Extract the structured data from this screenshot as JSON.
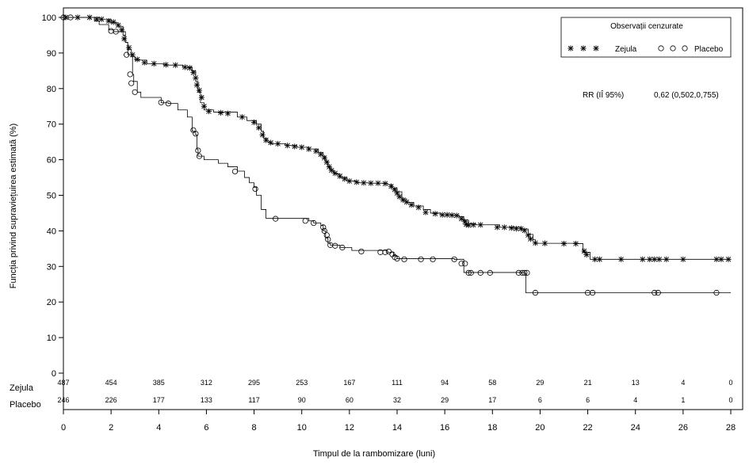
{
  "chart_data": {
    "type": "line",
    "subtype": "kaplan-meier",
    "xlabel": "Timpul de la rambomizare (luni)",
    "ylabel": "Funcția privind supraviețuirea estimată (%)",
    "xlim": [
      0,
      28
    ],
    "ylim": [
      0,
      100
    ],
    "xticks": [
      0,
      2,
      4,
      6,
      8,
      10,
      12,
      14,
      16,
      18,
      20,
      22,
      24,
      26,
      28
    ],
    "yticks": [
      0,
      10,
      20,
      30,
      40,
      50,
      60,
      70,
      80,
      90,
      100
    ],
    "grid": false,
    "legend": {
      "title": "Observații cenzurate",
      "position": "top-right",
      "entries": [
        {
          "series": "Zejula",
          "label": "Zejula",
          "marker": "asterisk"
        },
        {
          "series": "Placebo",
          "label": "Placebo",
          "marker": "circle"
        }
      ]
    },
    "annotation": {
      "label": "RR (IÎ 95%)",
      "value": "0,62 (0,502,0,755)"
    },
    "series": [
      {
        "name": "Zejula",
        "marker": "asterisk",
        "color": "#000000",
        "steps": [
          [
            0,
            100
          ],
          [
            1.5,
            99.5
          ],
          [
            2.0,
            98.5
          ],
          [
            2.3,
            97.5
          ],
          [
            2.5,
            96
          ],
          [
            2.6,
            93
          ],
          [
            2.7,
            91
          ],
          [
            2.85,
            89
          ],
          [
            3.0,
            88
          ],
          [
            3.5,
            87
          ],
          [
            4.2,
            86.6
          ],
          [
            5.0,
            86
          ],
          [
            5.4,
            85
          ],
          [
            5.55,
            82
          ],
          [
            5.65,
            79
          ],
          [
            5.75,
            76
          ],
          [
            5.9,
            74
          ],
          [
            6.3,
            73.4
          ],
          [
            7.3,
            72
          ],
          [
            7.7,
            71
          ],
          [
            8.1,
            70
          ],
          [
            8.3,
            68
          ],
          [
            8.4,
            66
          ],
          [
            8.55,
            65
          ],
          [
            8.7,
            64.5
          ],
          [
            9.3,
            64
          ],
          [
            9.8,
            63.5
          ],
          [
            10.3,
            63
          ],
          [
            10.7,
            62
          ],
          [
            10.9,
            61
          ],
          [
            11.0,
            59.5
          ],
          [
            11.1,
            58
          ],
          [
            11.2,
            57
          ],
          [
            11.35,
            56
          ],
          [
            11.6,
            55
          ],
          [
            11.9,
            54
          ],
          [
            12.3,
            53.5
          ],
          [
            12.8,
            53.4
          ],
          [
            13.6,
            53
          ],
          [
            13.8,
            52
          ],
          [
            14.0,
            51
          ],
          [
            14.2,
            49
          ],
          [
            14.4,
            48
          ],
          [
            14.7,
            47
          ],
          [
            15.1,
            46
          ],
          [
            15.4,
            45
          ],
          [
            15.8,
            44.5
          ],
          [
            16.3,
            44.4
          ],
          [
            16.6,
            44
          ],
          [
            16.8,
            43
          ],
          [
            17.0,
            42
          ],
          [
            17.3,
            41.7
          ],
          [
            18.3,
            41
          ],
          [
            19.2,
            40.5
          ],
          [
            19.5,
            39
          ],
          [
            19.7,
            37.5
          ],
          [
            19.8,
            36.5
          ],
          [
            21.6,
            36.4
          ],
          [
            21.8,
            34
          ],
          [
            22.1,
            32
          ],
          [
            28.0,
            32
          ]
        ],
        "censored": [
          [
            0.1,
            100
          ],
          [
            0.6,
            100
          ],
          [
            1.1,
            100
          ],
          [
            1.4,
            99.5
          ],
          [
            1.6,
            99.5
          ],
          [
            1.9,
            99
          ],
          [
            2.1,
            98.7
          ],
          [
            2.3,
            97.8
          ],
          [
            2.45,
            96.5
          ],
          [
            2.55,
            94
          ],
          [
            2.75,
            91.5
          ],
          [
            2.9,
            89.5
          ],
          [
            3.1,
            88.2
          ],
          [
            3.4,
            87.3
          ],
          [
            3.8,
            87
          ],
          [
            4.3,
            86.7
          ],
          [
            4.7,
            86.6
          ],
          [
            5.1,
            86
          ],
          [
            5.3,
            85.8
          ],
          [
            5.45,
            84.5
          ],
          [
            5.55,
            83
          ],
          [
            5.6,
            81
          ],
          [
            5.7,
            79.5
          ],
          [
            5.8,
            77.5
          ],
          [
            5.9,
            75
          ],
          [
            6.1,
            73.6
          ],
          [
            6.6,
            73.2
          ],
          [
            6.9,
            73
          ],
          [
            7.5,
            72
          ],
          [
            8.0,
            70.5
          ],
          [
            8.2,
            69
          ],
          [
            8.35,
            67
          ],
          [
            8.5,
            65.5
          ],
          [
            8.7,
            64.8
          ],
          [
            9.0,
            64.5
          ],
          [
            9.4,
            64
          ],
          [
            9.7,
            63.7
          ],
          [
            10.0,
            63.5
          ],
          [
            10.3,
            63
          ],
          [
            10.6,
            62.4
          ],
          [
            10.8,
            61.5
          ],
          [
            10.95,
            60.5
          ],
          [
            11.05,
            59.3
          ],
          [
            11.15,
            58
          ],
          [
            11.25,
            57
          ],
          [
            11.4,
            56.2
          ],
          [
            11.6,
            55.4
          ],
          [
            11.8,
            54.6
          ],
          [
            12.0,
            54
          ],
          [
            12.3,
            53.7
          ],
          [
            12.6,
            53.5
          ],
          [
            12.9,
            53.4
          ],
          [
            13.2,
            53.4
          ],
          [
            13.5,
            53.3
          ],
          [
            13.75,
            52.5
          ],
          [
            13.9,
            51.6
          ],
          [
            14.0,
            50.6
          ],
          [
            14.1,
            49.6
          ],
          [
            14.25,
            48.7
          ],
          [
            14.4,
            48.1
          ],
          [
            14.6,
            47.3
          ],
          [
            14.9,
            46.6
          ],
          [
            15.2,
            45.2
          ],
          [
            15.6,
            44.8
          ],
          [
            15.9,
            44.5
          ],
          [
            16.1,
            44.5
          ],
          [
            16.3,
            44.4
          ],
          [
            16.5,
            44.3
          ],
          [
            16.7,
            43.4
          ],
          [
            16.85,
            42.6
          ],
          [
            16.9,
            41.8
          ],
          [
            17.0,
            41.6
          ],
          [
            17.2,
            41.7
          ],
          [
            17.5,
            41.7
          ],
          [
            18.2,
            41
          ],
          [
            18.5,
            41
          ],
          [
            18.8,
            40.8
          ],
          [
            19.0,
            40.6
          ],
          [
            19.2,
            40.6
          ],
          [
            19.35,
            40.1
          ],
          [
            19.5,
            38.8
          ],
          [
            19.6,
            37.7
          ],
          [
            19.8,
            36.6
          ],
          [
            20.2,
            36.5
          ],
          [
            21.0,
            36.4
          ],
          [
            21.5,
            36.4
          ],
          [
            21.85,
            34.3
          ],
          [
            21.95,
            33.3
          ],
          [
            22.3,
            32
          ],
          [
            22.5,
            32
          ],
          [
            23.4,
            32
          ],
          [
            24.3,
            32
          ],
          [
            24.6,
            32
          ],
          [
            24.8,
            32
          ],
          [
            25.0,
            32
          ],
          [
            25.3,
            32
          ],
          [
            26.0,
            32
          ],
          [
            27.4,
            32
          ],
          [
            27.6,
            32
          ],
          [
            27.9,
            32
          ]
        ]
      },
      {
        "name": "Placebo",
        "marker": "circle",
        "color": "#000000",
        "steps": [
          [
            0,
            100
          ],
          [
            1.3,
            99
          ],
          [
            1.5,
            98
          ],
          [
            1.9,
            96.5
          ],
          [
            2.1,
            96
          ],
          [
            2.5,
            95
          ],
          [
            2.6,
            93
          ],
          [
            2.7,
            89.5
          ],
          [
            2.9,
            84
          ],
          [
            2.95,
            82
          ],
          [
            3.1,
            79
          ],
          [
            3.25,
            77.5
          ],
          [
            4.1,
            76
          ],
          [
            4.4,
            75.8
          ],
          [
            4.8,
            74
          ],
          [
            5.2,
            72
          ],
          [
            5.4,
            68
          ],
          [
            5.55,
            67
          ],
          [
            5.6,
            63
          ],
          [
            5.65,
            61
          ],
          [
            5.9,
            60
          ],
          [
            6.5,
            59
          ],
          [
            6.9,
            58
          ],
          [
            7.3,
            56.8
          ],
          [
            7.6,
            55
          ],
          [
            7.8,
            53.5
          ],
          [
            8.0,
            52.2
          ],
          [
            8.1,
            50
          ],
          [
            8.3,
            46
          ],
          [
            8.5,
            43.5
          ],
          [
            10.3,
            42.8
          ],
          [
            10.5,
            42.2
          ],
          [
            10.8,
            41.5
          ],
          [
            10.9,
            40
          ],
          [
            11.0,
            38
          ],
          [
            11.1,
            36.5
          ],
          [
            11.2,
            36
          ],
          [
            11.6,
            35.3
          ],
          [
            12.1,
            34.5
          ],
          [
            13.6,
            34
          ],
          [
            13.85,
            33
          ],
          [
            14.0,
            32.2
          ],
          [
            16.4,
            32
          ],
          [
            16.8,
            28.3
          ],
          [
            19.3,
            28.2
          ],
          [
            19.4,
            22.6
          ],
          [
            28.0,
            22.6
          ]
        ],
        "censored": [
          [
            0.0,
            100
          ],
          [
            0.3,
            100
          ],
          [
            2.0,
            96.2
          ],
          [
            2.2,
            96
          ],
          [
            2.65,
            89.5
          ],
          [
            2.8,
            84
          ],
          [
            2.85,
            81.5
          ],
          [
            3.0,
            79
          ],
          [
            4.1,
            76.1
          ],
          [
            4.4,
            75.8
          ],
          [
            5.45,
            68.3
          ],
          [
            5.55,
            67.3
          ],
          [
            5.65,
            62.6
          ],
          [
            5.7,
            61
          ],
          [
            7.2,
            56.7
          ],
          [
            8.05,
            51.8
          ],
          [
            8.9,
            43.4
          ],
          [
            10.15,
            42.8
          ],
          [
            10.5,
            42.2
          ],
          [
            10.9,
            41
          ],
          [
            10.95,
            40
          ],
          [
            11.05,
            38.8
          ],
          [
            11.1,
            37.6
          ],
          [
            11.2,
            36
          ],
          [
            11.4,
            35.8
          ],
          [
            11.7,
            35.3
          ],
          [
            12.5,
            34.2
          ],
          [
            13.3,
            34
          ],
          [
            13.5,
            34
          ],
          [
            13.65,
            34.2
          ],
          [
            13.8,
            33.4
          ],
          [
            13.9,
            32.6
          ],
          [
            14.0,
            32.2
          ],
          [
            14.3,
            32
          ],
          [
            15.0,
            32
          ],
          [
            15.5,
            32
          ],
          [
            16.4,
            32
          ],
          [
            16.7,
            30.8
          ],
          [
            16.85,
            30.8
          ],
          [
            17.0,
            28.2
          ],
          [
            17.1,
            28.2
          ],
          [
            17.5,
            28.2
          ],
          [
            17.9,
            28.2
          ],
          [
            19.1,
            28.2
          ],
          [
            19.25,
            28.2
          ],
          [
            19.35,
            28.2
          ],
          [
            19.45,
            28.2
          ],
          [
            19.8,
            22.6
          ],
          [
            22.0,
            22.6
          ],
          [
            22.2,
            22.6
          ],
          [
            24.8,
            22.6
          ],
          [
            24.95,
            22.6
          ],
          [
            27.4,
            22.6
          ]
        ]
      }
    ],
    "at_risk": {
      "x": [
        0,
        2,
        4,
        6,
        8,
        10,
        12,
        14,
        16,
        18,
        20,
        22,
        24,
        26,
        28
      ],
      "rows": [
        {
          "label": "Zejula",
          "values": [
            487,
            454,
            385,
            312,
            295,
            253,
            167,
            111,
            94,
            58,
            29,
            21,
            13,
            4,
            0
          ]
        },
        {
          "label": "Placebo",
          "values": [
            246,
            226,
            177,
            133,
            117,
            90,
            60,
            32,
            29,
            17,
            6,
            6,
            4,
            1,
            0
          ]
        }
      ]
    }
  }
}
